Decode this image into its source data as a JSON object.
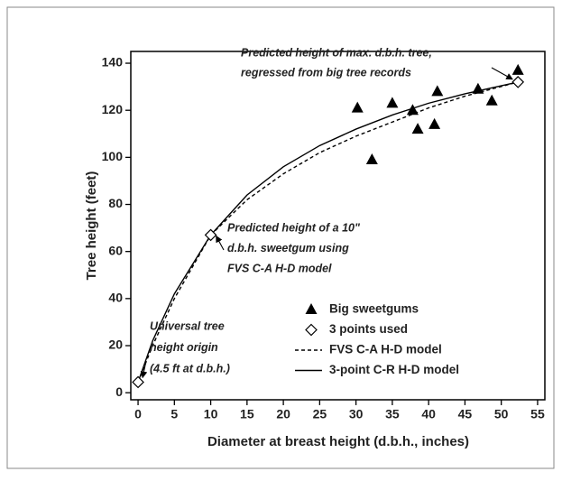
{
  "chart_data": {
    "type": "line",
    "xlabel": "Diameter at breast height (d.b.h., inches)",
    "ylabel": "Tree height (feet)",
    "xlim": [
      -1,
      56
    ],
    "ylim": [
      -3,
      145
    ],
    "xticks": [
      0,
      5,
      10,
      15,
      20,
      25,
      30,
      35,
      40,
      45,
      50,
      55
    ],
    "yticks": [
      0,
      20,
      40,
      60,
      80,
      100,
      120,
      140
    ],
    "legend": "lower right",
    "series": [
      {
        "name": "Big sweetgums",
        "style": "markers",
        "marker": "triangle",
        "color": "#000000",
        "x": [
          30.2,
          32.2,
          35,
          37.8,
          38.5,
          40.8,
          41.2,
          46.8,
          48.7,
          52.3
        ],
        "values": [
          121,
          99,
          123,
          120,
          112,
          114,
          128,
          129,
          124,
          137
        ]
      },
      {
        "name": "3 points used",
        "style": "markers",
        "marker": "diamond",
        "color": "#000000",
        "x": [
          0,
          10,
          52.3
        ],
        "values": [
          4.5,
          67,
          132
        ]
      },
      {
        "name": "FVS C-A H-D model",
        "style": "dashed",
        "color": "#000000",
        "x": [
          0,
          2,
          5,
          10,
          15,
          20,
          25,
          30,
          35,
          40,
          45,
          52.3
        ],
        "values": [
          4.5,
          20,
          40,
          67,
          82,
          93,
          102,
          109,
          115,
          121,
          126,
          132
        ]
      },
      {
        "name": "3-point C-R H-D model",
        "style": "solid",
        "color": "#000000",
        "x": [
          0,
          2,
          5,
          10,
          15,
          20,
          25,
          30,
          35,
          40,
          45,
          52.3
        ],
        "values": [
          4.5,
          22,
          42,
          67,
          84,
          96,
          105,
          112,
          118,
          123,
          127,
          132
        ]
      }
    ],
    "annotations": [
      {
        "lines": [
          "Predicted height of max. d.b.h. tree,",
          "regressed from big tree records"
        ]
      },
      {
        "lines": [
          "Predicted height of a 10\"",
          "d.b.h. sweetgum using",
          "FVS C-A H-D model"
        ]
      },
      {
        "lines": [
          "Universal tree",
          "height origin",
          "(4.5 ft at d.b.h.)"
        ]
      }
    ]
  }
}
